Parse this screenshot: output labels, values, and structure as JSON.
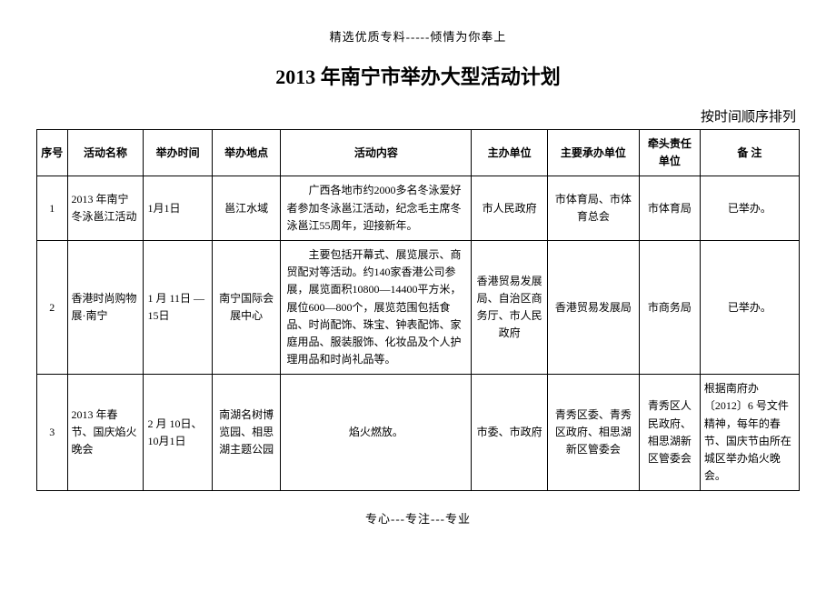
{
  "topMark": "精选优质专料-----倾情为你奉上",
  "title": "2013 年南宁市举办大型活动计划",
  "subtitle": "按时间顺序排列",
  "bottomMark": "专心---专注---专业",
  "columns": [
    "序号",
    "活动名称",
    "举办时间",
    "举办地点",
    "活动内容",
    "主办单位",
    "主要承办单位",
    "牵头责任单位",
    "备  注"
  ],
  "colWidths": [
    "4%",
    "10%",
    "9%",
    "9%",
    "25%",
    "10%",
    "12%",
    "8%",
    "13%"
  ],
  "rows": [
    {
      "seq": "1",
      "name": "2013 年南宁冬泳邕江活动",
      "time": "1月1日",
      "place": "邕江水域",
      "content": "广西各地市约2000多名冬泳爱好者参加冬泳邕江活动，纪念毛主席冬泳邕江55周年，迎接新年。",
      "host": "市人民政府",
      "organizer": "市体育局、市体育总会",
      "leader": "市体育局",
      "remark": "已举办。"
    },
    {
      "seq": "2",
      "name": "香港时尚购物展·南宁",
      "time": "1 月 11日 —15日",
      "place": "南宁国际会展中心",
      "content": "主要包括开幕式、展览展示、商贸配对等活动。约140家香港公司参展，展览面积10800—14400平方米，展位600—800个，展览范围包括食品、时尚配饰、珠宝、钟表配饰、家庭用品、服装服饰、化妆品及个人护理用品和时尚礼品等。",
      "host": "香港贸易发展局、自治区商务厅、市人民政府",
      "organizer": "香港贸易发展局",
      "leader": "市商务局",
      "remark": "已举办。"
    },
    {
      "seq": "3",
      "name": "2013 年春节、国庆焰火晚会",
      "time": "2 月 10日、10月1日",
      "place": "南湖名树博览园、相思湖主题公园",
      "content": "焰火燃放。",
      "contentCenter": true,
      "host": "市委、市政府",
      "organizer": "青秀区委、青秀区政府、相思湖新区管委会",
      "leader": "青秀区人民政府、相思湖新区管委会",
      "remark": "根据南府办〔2012〕6 号文件精神，每年的春节、国庆节由所在城区举办焰火晚会。",
      "remarkLeft": true
    }
  ]
}
